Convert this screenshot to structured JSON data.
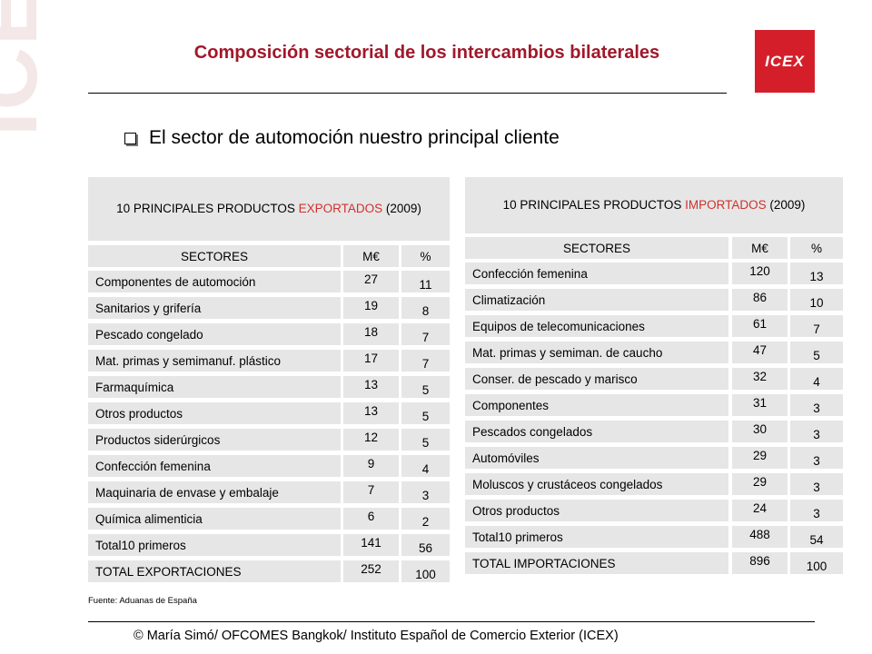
{
  "watermark": "ICEX",
  "title": "Composición sectorial de los intercambios bilaterales",
  "logo": "ICEX",
  "bullet": "El sector de automoción nuestro principal cliente",
  "exports": {
    "head_pre": "10 PRINCIPALES PRODUCTOS ",
    "head_red": "EXPORTADOS",
    "head_post": " (2009)",
    "columns": [
      "SECTORES",
      "M€",
      "%"
    ],
    "rows": [
      {
        "name": "Componentes de automoción",
        "value": "27",
        "pct": "11"
      },
      {
        "name": "Sanitarios y grifería",
        "value": "19",
        "pct": "8"
      },
      {
        "name": "Pescado congelado",
        "value": "18",
        "pct": "7"
      },
      {
        "name": "Mat. primas y semimanuf. plástico",
        "value": "17",
        "pct": "7"
      },
      {
        "name": "Farmaquímica",
        "value": "13",
        "pct": "5"
      },
      {
        "name": "Otros productos",
        "value": "13",
        "pct": "5"
      },
      {
        "name": "Productos siderúrgicos",
        "value": "12",
        "pct": "5"
      },
      {
        "name": "Confección femenina",
        "value": "9",
        "pct": "4"
      },
      {
        "name": "Maquinaria de envase y embalaje",
        "value": "7",
        "pct": "3"
      },
      {
        "name": "Química alimenticia",
        "value": "6",
        "pct": "2"
      },
      {
        "name": "Total10 primeros",
        "value": "141",
        "pct": "56"
      },
      {
        "name": "TOTAL EXPORTACIONES",
        "value": "252",
        "pct": "100"
      }
    ]
  },
  "imports": {
    "head_pre": "10 PRINCIPALES PRODUCTOS ",
    "head_red": "IMPORTADOS",
    "head_post": " (2009)",
    "columns": [
      "SECTORES",
      "M€",
      "%"
    ],
    "rows": [
      {
        "name": "Confección femenina",
        "value": "120",
        "pct": "13"
      },
      {
        "name": "Climatización",
        "value": "86",
        "pct": "10"
      },
      {
        "name": "Equipos de telecomunicaciones",
        "value": "61",
        "pct": "7"
      },
      {
        "name": "Mat. primas y semiman. de caucho",
        "value": "47",
        "pct": "5"
      },
      {
        "name": "Conser. de pescado y marisco",
        "value": "32",
        "pct": "4"
      },
      {
        "name": "Componentes",
        "value": "31",
        "pct": "3"
      },
      {
        "name": "Pescados congelados",
        "value": "30",
        "pct": "3"
      },
      {
        "name": "Automóviles",
        "value": "29",
        "pct": "3"
      },
      {
        "name": "Moluscos y crustáceos congelados",
        "value": "29",
        "pct": "3"
      },
      {
        "name": "Otros productos",
        "value": "24",
        "pct": "3"
      },
      {
        "name": "Total10 primeros",
        "value": "488",
        "pct": "54"
      },
      {
        "name": "TOTAL IMPORTACIONES",
        "value": "896",
        "pct": "100"
      }
    ]
  },
  "source": "Fuente: Aduanas de España",
  "footer": "© María Simó/ OFCOMES Bangkok/ Instituto Español de Comercio Exterior (ICEX)"
}
